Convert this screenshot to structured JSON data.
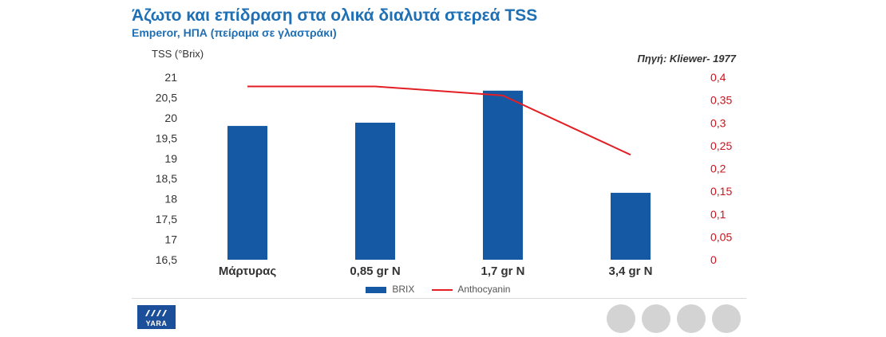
{
  "header": {
    "title": "Άζωτο και επίδραση στα ολικά διαλυτά στερεά  TSS",
    "subtitle": "Emperor, ΗΠΑ (πείραμα σε γλαστράκι)",
    "source": "Πηγή: Kliewer- 1977"
  },
  "chart_data": {
    "type": "bar",
    "categories": [
      "Μάρτυρας",
      "0,85 gr N",
      "1,7 gr N",
      "3,4 gr N"
    ],
    "ylabel": "TSS (°Brix)",
    "ylim": [
      16.5,
      21
    ],
    "y_ticks": [
      "16,5",
      "17",
      "17,5",
      "18",
      "18,5",
      "19",
      "19,5",
      "20",
      "20,5",
      "21"
    ],
    "y2lim": [
      0,
      0.4
    ],
    "y2_ticks": [
      "0",
      "0,05",
      "0,1",
      "0,15",
      "0,2",
      "0,25",
      "0,3",
      "0,35",
      "0,4"
    ],
    "series": [
      {
        "name": "BRIX",
        "kind": "bar",
        "axis": "left",
        "color": "#1559a4",
        "values": [
          19.8,
          19.88,
          20.67,
          18.15
        ]
      },
      {
        "name": "Anthocyanin",
        "kind": "line",
        "axis": "right",
        "color": "#e31e24",
        "values": [
          0.38,
          0.38,
          0.36,
          0.23
        ]
      }
    ],
    "grid": false,
    "legend": "bottom"
  },
  "footer": {
    "logo_text": "YARA",
    "logo_icon": "yara-ship-icon",
    "nav_dots": 4
  }
}
